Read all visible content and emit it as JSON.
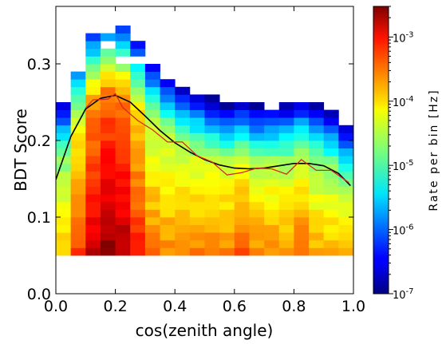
{
  "chart_data": {
    "type": "heatmap",
    "title": "",
    "xlabel": "cos(zenith angle)",
    "ylabel": "BDT Score",
    "xlim": [
      0.0,
      1.0
    ],
    "ylim": [
      0.0,
      0.375
    ],
    "x_ticks": [
      "0.0",
      "0.2",
      "0.4",
      "0.6",
      "0.8",
      "1.0"
    ],
    "y_ticks": [
      "0.0",
      "0.1",
      "0.2",
      "0.3"
    ],
    "grid": false,
    "colorbar": {
      "label": "Rate per bin [Hz]",
      "scale": "log",
      "range": [
        1e-07,
        0.003
      ],
      "colormap": "jet",
      "ticks": [
        {
          "base": "10",
          "exp": "-7",
          "value": 1e-07
        },
        {
          "base": "10",
          "exp": "-6",
          "value": 1e-06
        },
        {
          "base": "10",
          "exp": "-5",
          "value": 1e-05
        },
        {
          "base": "10",
          "exp": "-4",
          "value": 0.0001
        },
        {
          "base": "10",
          "exp": "-3",
          "value": 0.001
        }
      ]
    },
    "heatmap": {
      "x_bins": 20,
      "y_bin_width": 0.01,
      "y_min": 0.05,
      "peak_rate": 0.0025,
      "peak_location": {
        "x": 0.18,
        "y": 0.06
      }
    },
    "series": [
      {
        "color": "#000000",
        "x": [
          0.0,
          0.05,
          0.1,
          0.15,
          0.2,
          0.25,
          0.3,
          0.35,
          0.4,
          0.45,
          0.5,
          0.55,
          0.6,
          0.65,
          0.7,
          0.75,
          0.8,
          0.85,
          0.9,
          0.95,
          0.99
        ],
        "y": [
          0.149,
          0.205,
          0.241,
          0.255,
          0.259,
          0.25,
          0.232,
          0.213,
          0.197,
          0.185,
          0.175,
          0.168,
          0.164,
          0.163,
          0.164,
          0.167,
          0.17,
          0.17,
          0.167,
          0.157,
          0.141
        ]
      },
      {
        "color": "#d62728",
        "x": [
          0.1,
          0.125,
          0.175,
          0.2,
          0.225,
          0.275,
          0.325,
          0.375,
          0.425,
          0.475,
          0.525,
          0.575,
          0.625,
          0.675,
          0.725,
          0.775,
          0.825,
          0.875,
          0.925,
          0.985
        ],
        "y": [
          0.242,
          0.253,
          0.254,
          0.261,
          0.243,
          0.226,
          0.214,
          0.198,
          0.198,
          0.18,
          0.172,
          0.155,
          0.158,
          0.164,
          0.163,
          0.156,
          0.175,
          0.161,
          0.161,
          0.145
        ]
      }
    ]
  }
}
